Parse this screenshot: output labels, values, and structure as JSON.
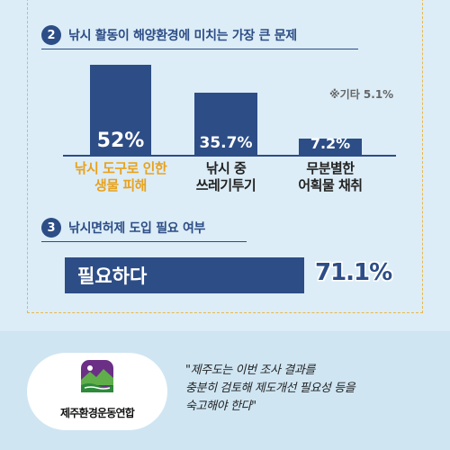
{
  "section2": {
    "number": "2",
    "title": "낚시 활동이 해양환경에 미치는 가장 큰 문제",
    "other_note": "※기타 5.1%",
    "bars": [
      {
        "label_line1": "낚시 도구로 인한",
        "label_line2": "생물 피해",
        "value_text": "52%"
      },
      {
        "label_line1": "낚시 중",
        "label_line2": "쓰레기투기",
        "value_text": "35.7%"
      },
      {
        "label_line1": "무분별한",
        "label_line2": "어획물 채취",
        "value_text": "7.2%"
      }
    ]
  },
  "chart_data": {
    "type": "bar",
    "categories": [
      "낚시 도구로 인한 생물 피해",
      "낚시 중 쓰레기투기",
      "무분별한 어획물 채취"
    ],
    "values": [
      52,
      35.7,
      7.2
    ],
    "highlight_color": "#e8a21f",
    "bar_color": "#2d4d86"
  },
  "section3": {
    "number": "3",
    "title": "낚시면허제 도입 필요 여부",
    "answer_label": "필요하다",
    "answer_value": "71.1%",
    "answer_percent": 71.1
  },
  "footer": {
    "logo_text": "제주환경운동연합",
    "logo_icon": "jeju-landscape-icon",
    "quote_line1": "\"제주도는 이번 조사 결과를",
    "quote_line2": "충분히 검토해 제도개선 필요성 등을",
    "quote_line3": "숙고해야 한다\""
  }
}
